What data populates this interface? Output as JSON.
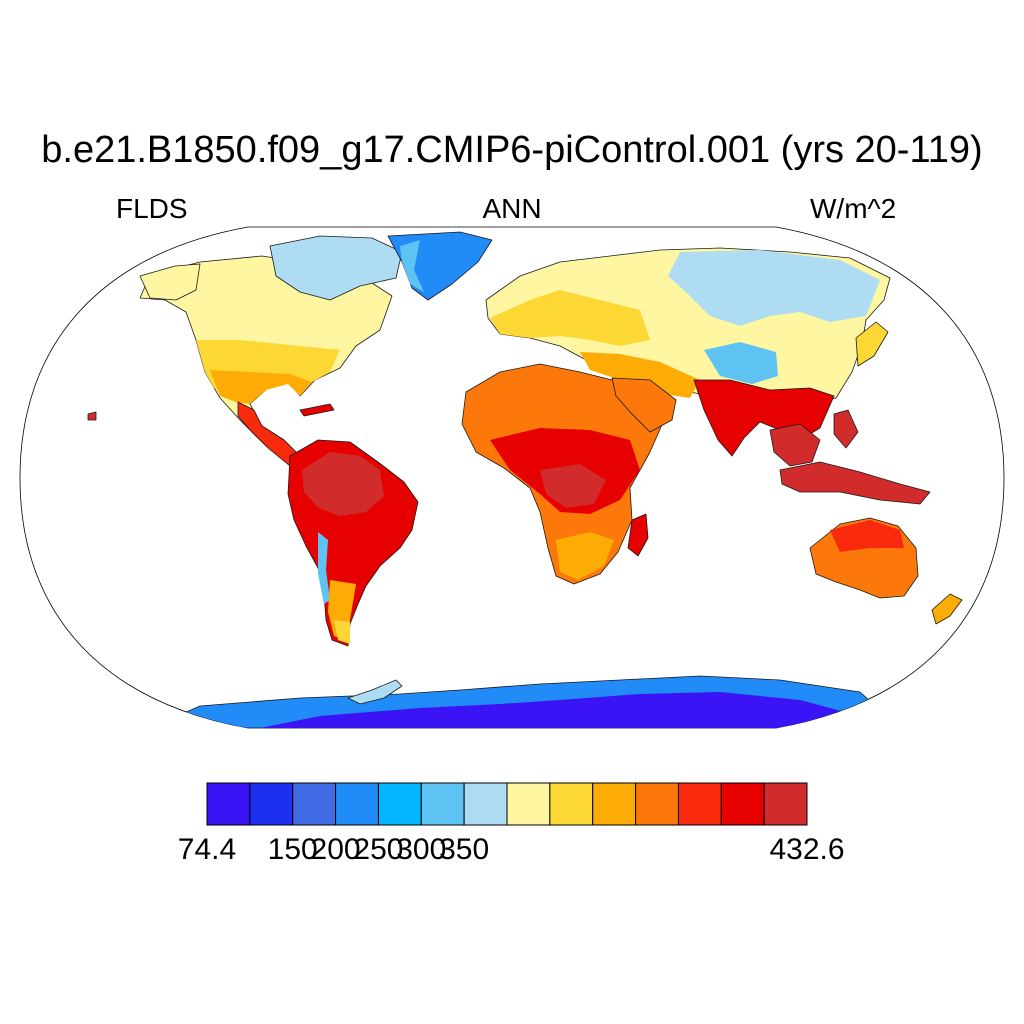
{
  "title": "b.e21.B1850.f09_g17.CMIP6-piControl.001 (yrs 20-119)",
  "subtitle_left": "FLDS",
  "subtitle_center": "ANN",
  "subtitle_right": "W/m^2",
  "colorbar": {
    "colors": [
      "#3a14f5",
      "#1d2ff0",
      "#3f6ae3",
      "#218bf7",
      "#04b5ff",
      "#5ec2f2",
      "#aedcf2",
      "#fef6a0",
      "#fdd835",
      "#fdab05",
      "#fc780a",
      "#f9290d",
      "#e60000",
      "#d22b2b"
    ],
    "labels": [
      {
        "text": "74.4",
        "boundary": 0
      },
      {
        "text": "150",
        "boundary": 2
      },
      {
        "text": "200",
        "boundary": 3
      },
      {
        "text": "250",
        "boundary": 4
      },
      {
        "text": "300",
        "boundary": 5
      },
      {
        "text": "350",
        "boundary": 6
      },
      {
        "text": "432.6",
        "boundary": 14
      }
    ]
  }
}
